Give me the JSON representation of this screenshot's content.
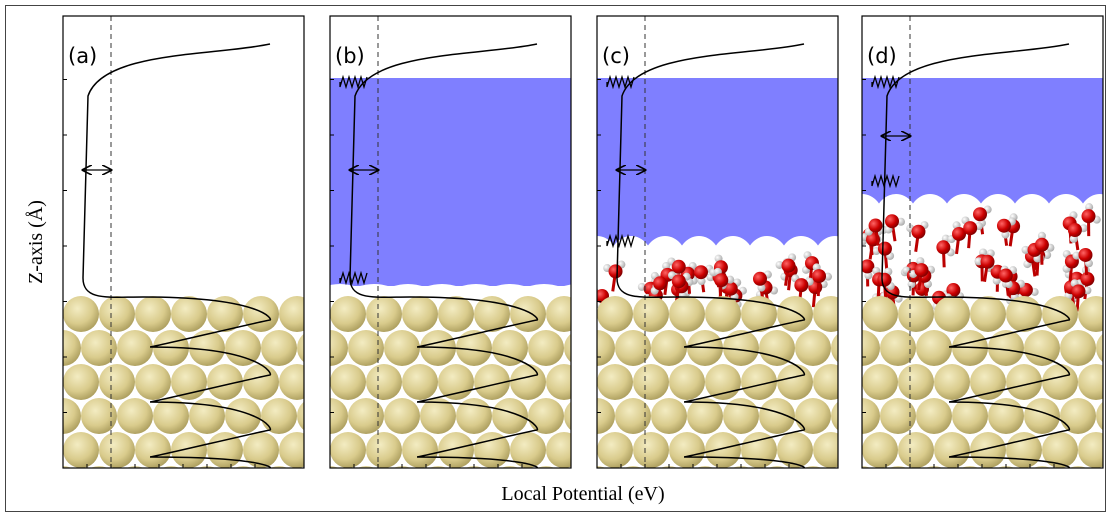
{
  "y_axis_label": "Z-axis (Å)",
  "x_axis_label": "Local Potential (eV)",
  "panels": [
    {
      "label": "(a)"
    },
    {
      "label": "(b)"
    },
    {
      "label": "(c)"
    },
    {
      "label": "(d)"
    }
  ]
}
